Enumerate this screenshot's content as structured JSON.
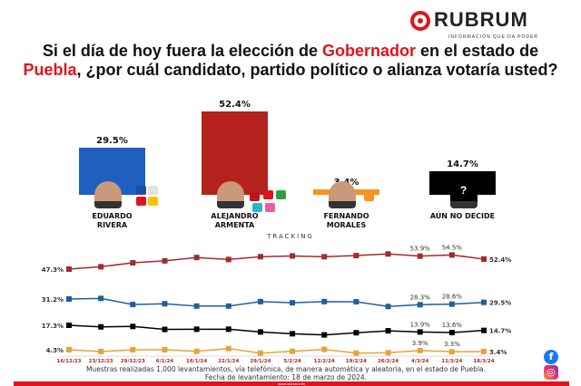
{
  "header": {
    "brand": "RUBRUM",
    "tagline": "INFORMACIÓN QUE DA PODER"
  },
  "title": {
    "part1": "Si el día de hoy fuera la elección de ",
    "highlight1": "Gobernador",
    "part2": " en el estado de ",
    "highlight2": "Puebla",
    "part3": ", ¿por cuál candidato, partido político o alianza votaría usted?"
  },
  "chart_data": [
    {
      "type": "bar",
      "categories": [
        "EDUARDO RIVERA",
        "ALEJANDRO ARMENTA",
        "FERNANDO MORALES",
        "AÚN NO DECIDE"
      ],
      "values": [
        29.5,
        52.4,
        3.4,
        14.7
      ],
      "labels": [
        "29.5%",
        "52.4%",
        "3.4%",
        "14.7%"
      ],
      "colors": [
        "#1f5fbf",
        "#b3221c",
        "#f7941d",
        "#000000"
      ]
    },
    {
      "type": "line",
      "title": "TRACKING",
      "x": [
        "16/12/23",
        "23/12/23",
        "29/12/23",
        "6/1/24",
        "16/1/24",
        "22/1/24",
        "29/1/24",
        "5/2/24",
        "12/2/24",
        "19/2/24",
        "26/2/24",
        "4/3/24",
        "11/3/24",
        "18/3/24"
      ],
      "series": [
        {
          "color": "#a52a2a",
          "values": [
            47.3,
            48.5,
            50.5,
            51.5,
            53.2,
            52.2,
            53.6,
            54.0,
            53.6,
            54.2,
            55.0,
            53.9,
            54.5,
            52.4
          ],
          "labels": {
            "0": "47.3%",
            "11": "53.9%",
            "12": "54.5%",
            "13": "52.4%"
          }
        },
        {
          "color": "#1f5f9f",
          "values": [
            31.2,
            31.5,
            28.4,
            28.8,
            27.6,
            27.6,
            29.9,
            29.3,
            29.9,
            29.8,
            27.4,
            28.3,
            28.6,
            29.5
          ],
          "labels": {
            "0": "31.2%",
            "11": "28.3%",
            "12": "28.6%",
            "13": "29.5%"
          }
        },
        {
          "color": "#000000",
          "values": [
            17.3,
            16.5,
            16.7,
            15.2,
            15.3,
            15.3,
            13.9,
            13.0,
            12.4,
            13.5,
            14.5,
            13.9,
            13.6,
            14.7
          ],
          "labels": {
            "0": "17.3%",
            "11": "13.9%",
            "12": "13.6%",
            "13": "14.7%"
          }
        },
        {
          "color": "#e8a23a",
          "values": [
            4.3,
            3.4,
            4.3,
            4.3,
            3.5,
            4.9,
            2.6,
            3.5,
            4.5,
            2.6,
            2.8,
            3.9,
            3.3,
            3.4
          ],
          "labels": {
            "0": "4.3%",
            "11": "3.9%",
            "12": "3.3%",
            "13": "3.4%"
          }
        }
      ],
      "date_color": "#a52a2a"
    }
  ],
  "note": {
    "line1": "Muestras realizadas 1,000 levantamientos, vía telefónica, de manera automática y aleatoria, en el estado de Puebla.",
    "line2": "Fecha de levantamiento: 18 de marzo de 2024."
  },
  "footer": {
    "url": "www.rubrum.info"
  },
  "social": {
    "facebook": "facebook-icon",
    "instagram": "instagram-icon"
  }
}
